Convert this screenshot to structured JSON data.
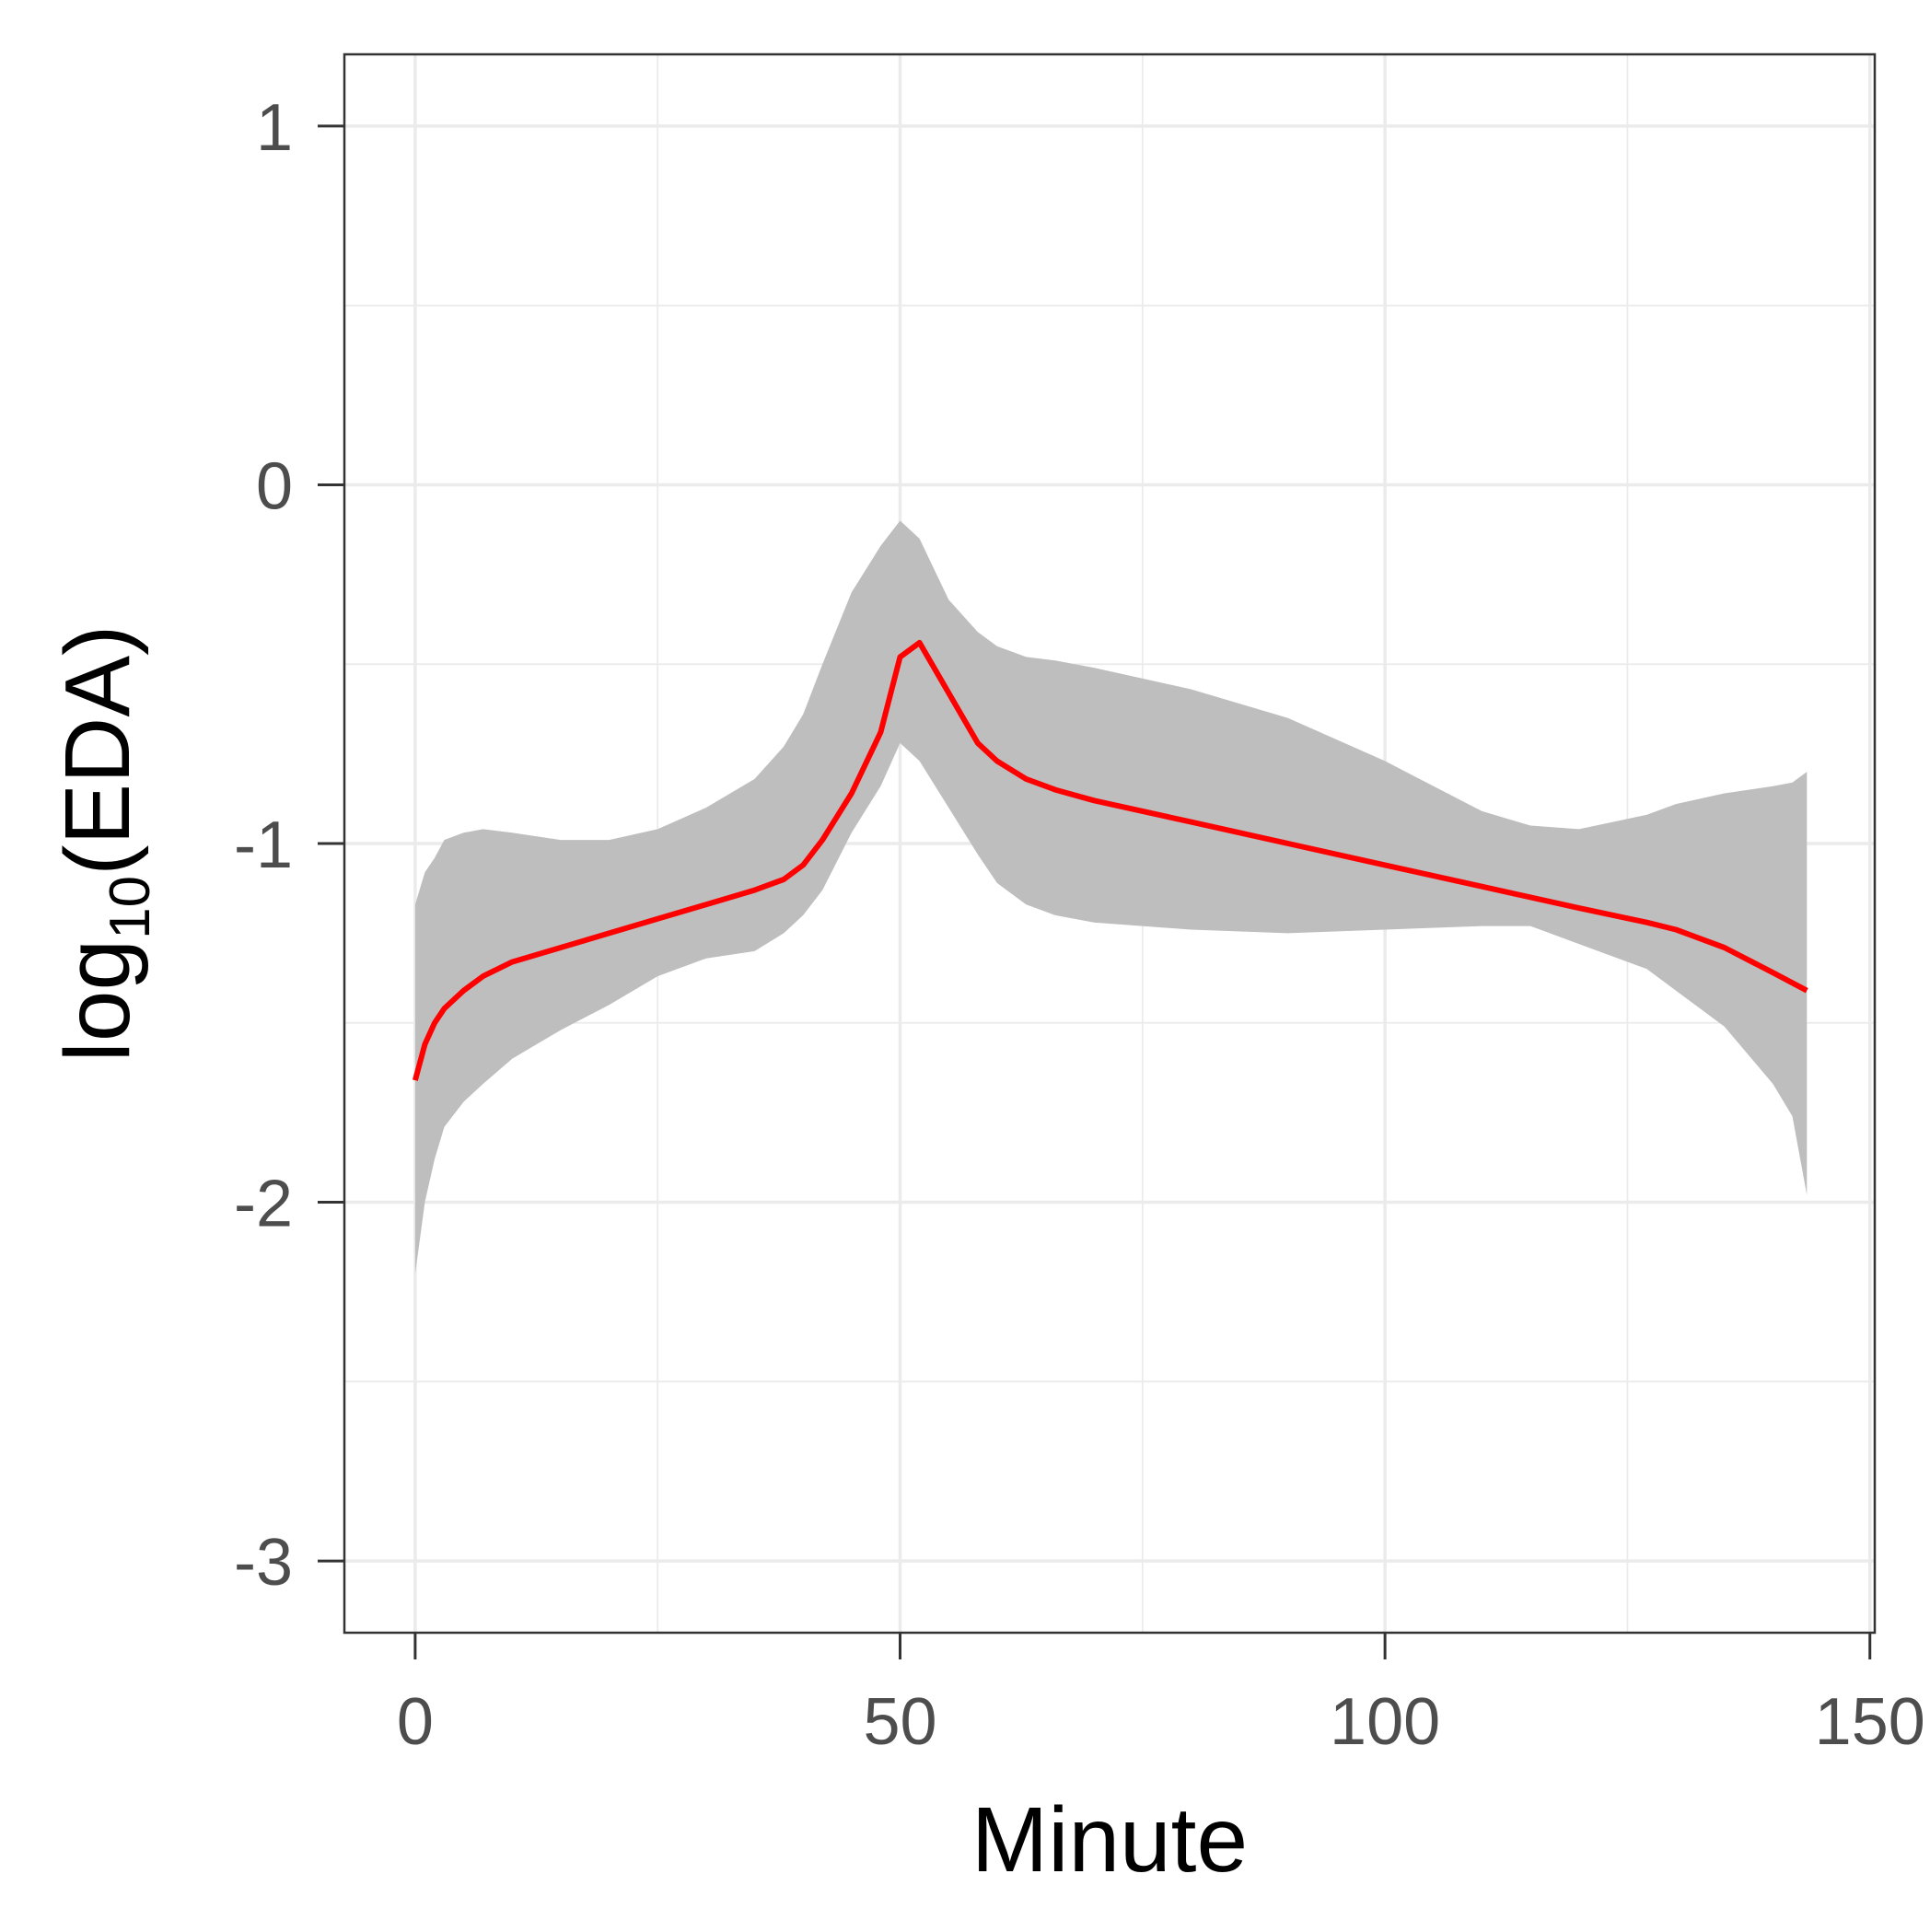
{
  "chart_data": {
    "type": "line",
    "xlabel": "Minute",
    "ylabel": {
      "base": "log",
      "subscript": "10",
      "rest": "(EDA)"
    },
    "xlim": [
      -7.3,
      150.5
    ],
    "ylim": [
      -3.2,
      1.2
    ],
    "x_ticks": [
      0,
      50,
      100,
      150
    ],
    "y_ticks": [
      1,
      0,
      -1,
      -2,
      -3
    ],
    "y_tick_labels": [
      "1",
      "0",
      "-1",
      "-2",
      "-3"
    ],
    "grid": true,
    "colors": {
      "line": "#ff0000",
      "band": "#bebebe",
      "grid": "#ebebeb",
      "panel_border": "#333333"
    },
    "series": [
      {
        "role": "smooth-fit",
        "x": [
          0,
          1,
          2,
          3,
          5,
          7,
          10,
          15,
          20,
          25,
          30,
          35,
          38,
          40,
          42,
          45,
          48,
          50,
          52,
          55,
          58,
          60,
          63,
          66,
          70,
          80,
          90,
          100,
          110,
          120,
          127,
          130,
          135,
          140,
          143.5
        ],
        "y": [
          -1.66,
          -1.56,
          -1.5,
          -1.46,
          -1.41,
          -1.37,
          -1.33,
          -1.29,
          -1.25,
          -1.21,
          -1.17,
          -1.13,
          -1.1,
          -1.06,
          -0.99,
          -0.86,
          -0.69,
          -0.48,
          -0.44,
          -0.58,
          -0.72,
          -0.77,
          -0.82,
          -0.85,
          -0.88,
          -0.94,
          -1.0,
          -1.06,
          -1.12,
          -1.18,
          -1.22,
          -1.24,
          -1.29,
          -1.36,
          -1.41
        ]
      },
      {
        "role": "confidence-band",
        "x": [
          0,
          1,
          2,
          3,
          5,
          7,
          10,
          15,
          20,
          25,
          30,
          35,
          38,
          40,
          42,
          45,
          48,
          50,
          52,
          55,
          58,
          60,
          63,
          66,
          70,
          80,
          90,
          100,
          110,
          115,
          120,
          127,
          130,
          135,
          140,
          142,
          143.5
        ],
        "lower": [
          -2.2,
          -2.0,
          -1.88,
          -1.79,
          -1.72,
          -1.67,
          -1.6,
          -1.52,
          -1.45,
          -1.37,
          -1.32,
          -1.3,
          -1.25,
          -1.2,
          -1.13,
          -0.97,
          -0.84,
          -0.72,
          -0.77,
          -0.9,
          -1.03,
          -1.11,
          -1.17,
          -1.2,
          -1.22,
          -1.24,
          -1.25,
          -1.24,
          -1.23,
          -1.23,
          -1.28,
          -1.35,
          -1.41,
          -1.51,
          -1.67,
          -1.76,
          -1.98
        ],
        "upper": [
          -1.17,
          -1.08,
          -1.04,
          -0.99,
          -0.97,
          -0.96,
          -0.97,
          -0.99,
          -0.99,
          -0.96,
          -0.9,
          -0.82,
          -0.73,
          -0.64,
          -0.5,
          -0.3,
          -0.17,
          -0.1,
          -0.15,
          -0.32,
          -0.41,
          -0.45,
          -0.48,
          -0.49,
          -0.51,
          -0.57,
          -0.65,
          -0.77,
          -0.91,
          -0.95,
          -0.96,
          -0.92,
          -0.89,
          -0.86,
          -0.84,
          -0.83,
          -0.8
        ]
      }
    ]
  }
}
